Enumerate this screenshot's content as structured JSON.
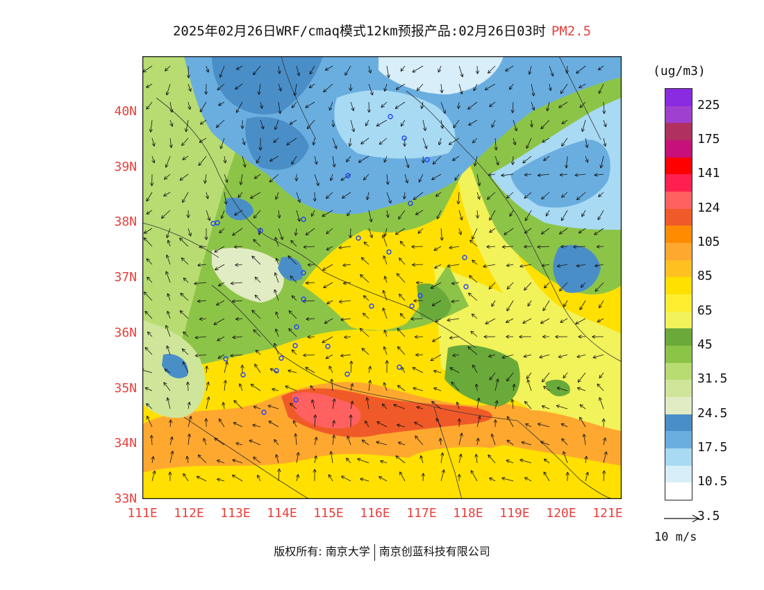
{
  "title": {
    "main": "2025年02月26日WRF/cmaq模式12km预报产品:02月26日03时",
    "pollutant": "PM2.5"
  },
  "axes": {
    "lat_labels": [
      "40N",
      "39N",
      "38N",
      "37N",
      "36N",
      "35N",
      "34N",
      "33N"
    ],
    "lon_labels": [
      "111E",
      "112E",
      "113E",
      "114E",
      "115E",
      "116E",
      "117E",
      "118E",
      "119E",
      "120E",
      "121E"
    ]
  },
  "legend": {
    "unit": "(ug/m3)",
    "labels": [
      "225",
      "175",
      "141",
      "124",
      "105",
      "85",
      "65",
      "45",
      "31.5",
      "24.5",
      "17.5",
      "10.5",
      "3.5"
    ],
    "colors_top_to_bottom": [
      "#8a2be2",
      "#a040d0",
      "#b03060",
      "#c8107a",
      "#ff0000",
      "#ff2050",
      "#ff6060",
      "#f05a28",
      "#ff8c00",
      "#ffa830",
      "#ffc020",
      "#ffe000",
      "#ffee30",
      "#f2f25a",
      "#6aaa3a",
      "#8cc448",
      "#b8dc72",
      "#cfe69a",
      "#e2ecc4",
      "#4a8ec8",
      "#6aaee0",
      "#a8daf4",
      "#d8eef8",
      "#ffffff"
    ]
  },
  "wind_ref": {
    "label": "10 m/s"
  },
  "footer": {
    "left": "版权所有: 南京大学",
    "right": "南京创蓝科技有限公司"
  },
  "map": {
    "lon_range": [
      111,
      121.3
    ],
    "lat_range": [
      33,
      41
    ],
    "colors": {
      "yellow": "#ffe000",
      "pale_yellow": "#f2f25a",
      "orange": "#ffa830",
      "dark_orange": "#f05a28",
      "red_pink": "#ff6060",
      "dark_green": "#6aaa3a",
      "green": "#8cc448",
      "light_green": "#b8dc72",
      "pale_green": "#cfe69a",
      "very_pale_green": "#e2ecc4",
      "blue": "#4a8ec8",
      "mid_blue": "#6aaee0",
      "light_blue": "#a8daf4",
      "pale_blue": "#d8eef8"
    }
  }
}
